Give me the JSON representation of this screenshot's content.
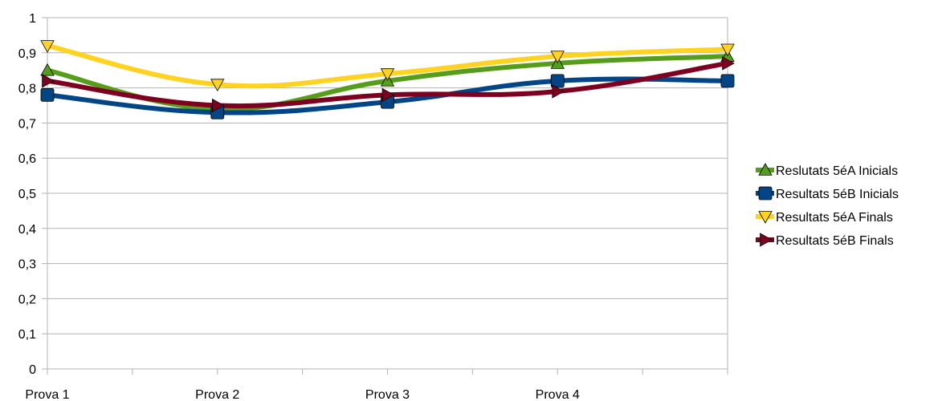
{
  "chart_data": {
    "type": "line",
    "categories": [
      "Prova 1",
      "Prova 2",
      "Prova 3",
      "Prova 4",
      ""
    ],
    "ylim": [
      0,
      1
    ],
    "yticks": [
      "0",
      "0,1",
      "0,2",
      "0,3",
      "0,4",
      "0,5",
      "0,6",
      "0,7",
      "0,8",
      "0,9",
      "1"
    ],
    "grid": true,
    "legend_position": "right",
    "series": [
      {
        "name": "Reslutats 5éA Inicials",
        "color": "#579d1c",
        "marker": "triangle-up",
        "values": [
          0.85,
          0.74,
          0.82,
          0.87,
          0.89
        ]
      },
      {
        "name": "Resultats 5éB Inicials",
        "color": "#004586",
        "marker": "square",
        "values": [
          0.78,
          0.73,
          0.76,
          0.82,
          0.82
        ]
      },
      {
        "name": "Resultats 5éA Finals",
        "color": "#ffd320",
        "marker": "triangle-down",
        "values": [
          0.92,
          0.81,
          0.84,
          0.89,
          0.91
        ]
      },
      {
        "name": "Resultats 5éB Finals",
        "color": "#7e0021",
        "marker": "triangle-right",
        "values": [
          0.82,
          0.75,
          0.78,
          0.79,
          0.87
        ]
      }
    ]
  }
}
